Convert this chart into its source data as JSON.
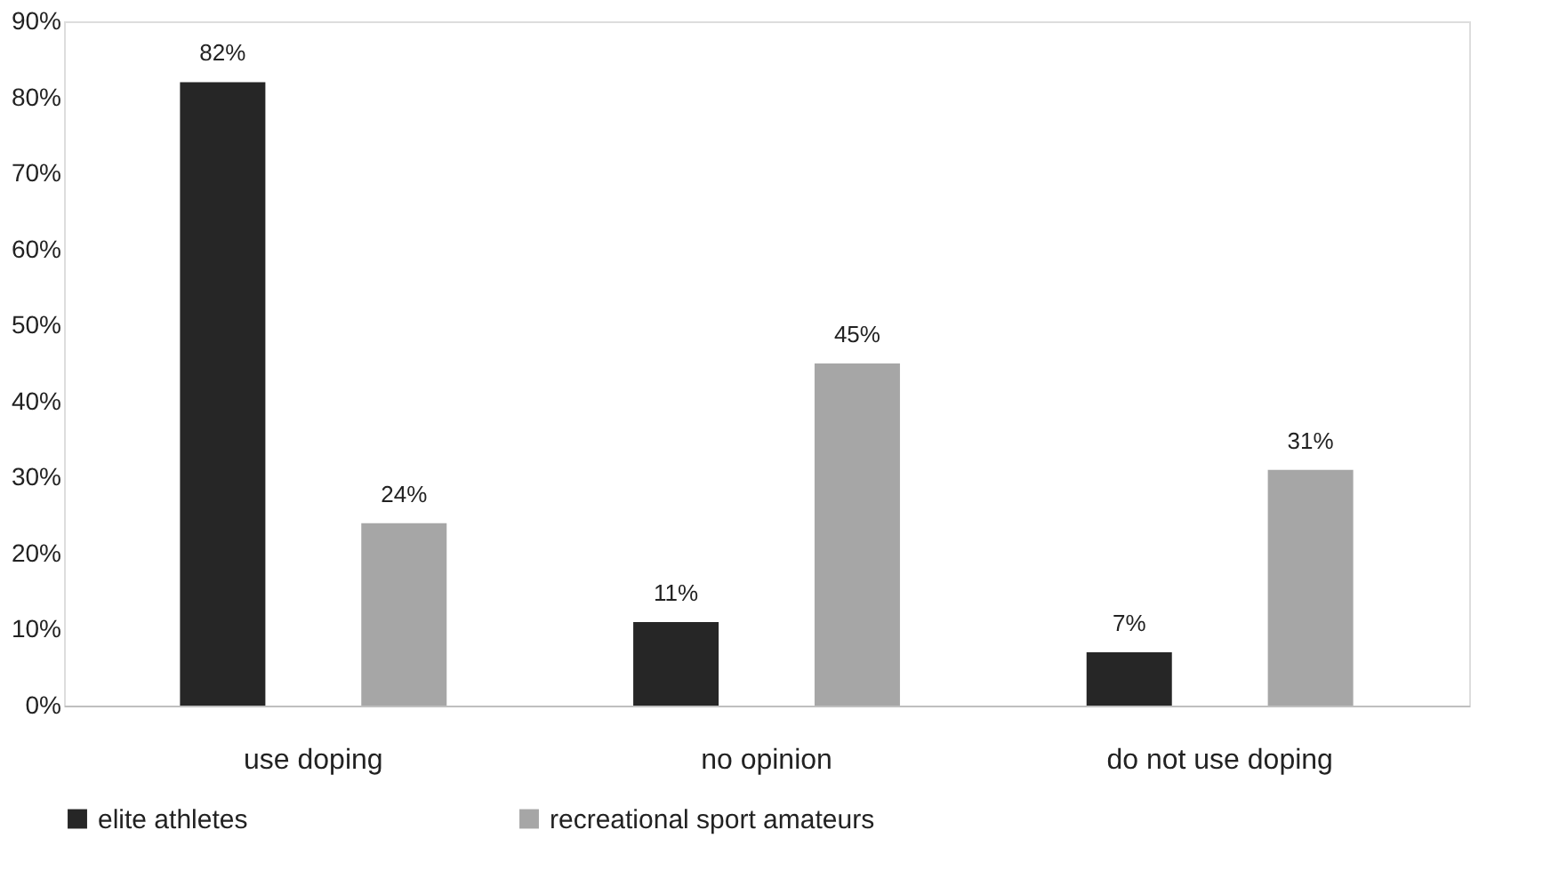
{
  "chart_data": {
    "type": "bar",
    "categories": [
      "use doping",
      "no opinion",
      "do not use doping"
    ],
    "series": [
      {
        "name": "elite athletes",
        "color": "#262626",
        "values": [
          82,
          11,
          7
        ],
        "value_labels": [
          "82%",
          "11%",
          "7%"
        ]
      },
      {
        "name": "recreational  sport  amateurs",
        "color": "#a6a6a6",
        "values": [
          24,
          45,
          31
        ],
        "value_labels": [
          "24%",
          "45%",
          "31%"
        ]
      }
    ],
    "ylim": [
      0,
      90
    ],
    "yticks": [
      {
        "value": 0,
        "label": "0%"
      },
      {
        "value": 10,
        "label": "10%"
      },
      {
        "value": 20,
        "label": "20%"
      },
      {
        "value": 30,
        "label": "30%"
      },
      {
        "value": 40,
        "label": "40%"
      },
      {
        "value": 50,
        "label": "50%"
      },
      {
        "value": 60,
        "label": "60%"
      },
      {
        "value": 70,
        "label": "70%"
      },
      {
        "value": 80,
        "label": "80%"
      },
      {
        "value": 90,
        "label": "90%"
      }
    ],
    "grid": false,
    "legend": "bottom"
  }
}
